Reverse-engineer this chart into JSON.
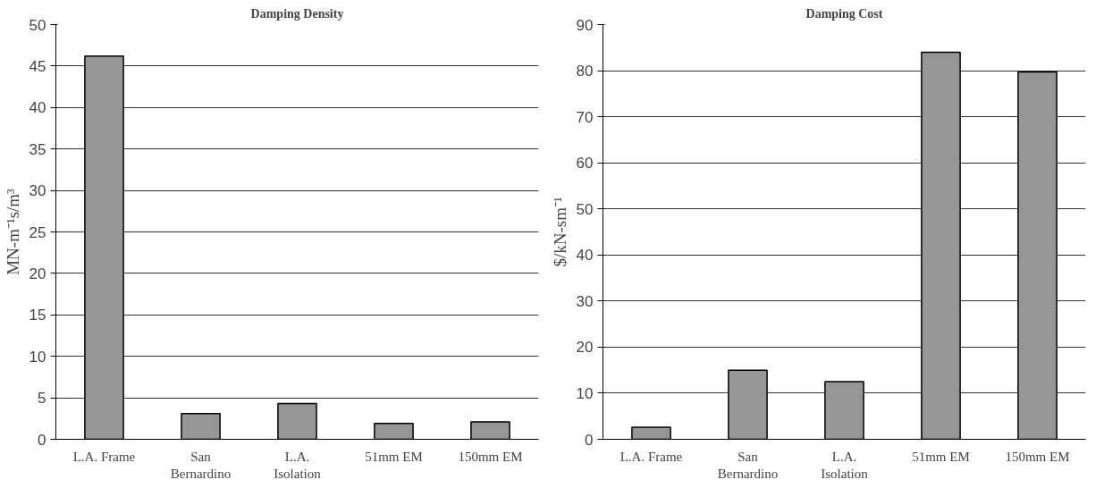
{
  "chart_data": [
    {
      "type": "bar",
      "title": "Damping Density",
      "ylabel": "MN-m⁻¹s/m³",
      "categories": [
        "L.A. Frame",
        "San\nBernardino",
        "L.A.\nIsolation",
        "51mm EM",
        "150mm EM"
      ],
      "values": [
        46.2,
        3.1,
        4.3,
        1.9,
        2.1
      ],
      "color": "#969696",
      "ylim": [
        0,
        50
      ],
      "yticks": [
        0,
        5,
        10,
        15,
        20,
        25,
        30,
        35,
        40,
        45,
        50
      ],
      "grid": "y"
    },
    {
      "type": "bar",
      "title": "Damping Cost",
      "ylabel": "$/kN-sm⁻¹",
      "categories": [
        "L.A. Frame",
        "San\nBernardino",
        "L.A.\nIsolation",
        "51mm EM",
        "150mm EM"
      ],
      "values": [
        2.6,
        15.0,
        12.5,
        84.0,
        79.7
      ],
      "color": "#969696",
      "ylim": [
        0,
        90
      ],
      "yticks": [
        0,
        10,
        20,
        30,
        40,
        50,
        60,
        70,
        80,
        90
      ],
      "grid": "y"
    }
  ]
}
